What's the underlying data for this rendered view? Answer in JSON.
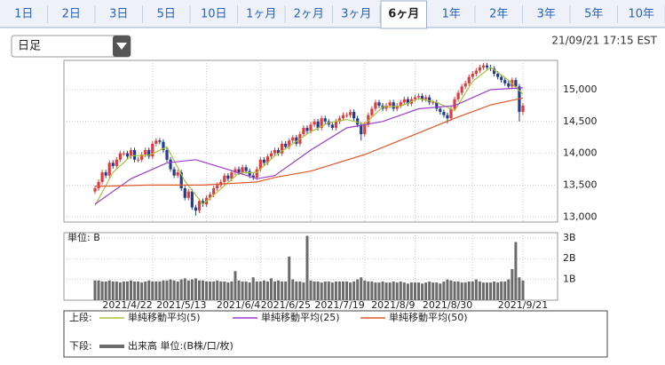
{
  "tabs": [
    {
      "label": "1日"
    },
    {
      "label": "2日"
    },
    {
      "label": "3日"
    },
    {
      "label": "5日"
    },
    {
      "label": "10日"
    },
    {
      "label": "1ヶ月"
    },
    {
      "label": "2ヶ月"
    },
    {
      "label": "3ヶ月"
    },
    {
      "label": "6ヶ月",
      "selected": true
    },
    {
      "label": "1年"
    },
    {
      "label": "2年"
    },
    {
      "label": "3年"
    },
    {
      "label": "5年"
    },
    {
      "label": "10年"
    }
  ],
  "dropdown": "日足",
  "timestamp": "21/09/21 17:15 EST",
  "legend": {
    "upper": "上段:",
    "lower": "下段:"
  },
  "chart_data": [
    {
      "type": "candlestick",
      "up_color": "#e03a3a",
      "down_color": "#1f3d8f",
      "grid": true,
      "ylim": [
        12920,
        15460
      ],
      "yticks": [
        {
          "value": 13000,
          "label": "13,000"
        },
        {
          "value": 13500,
          "label": "13,500"
        },
        {
          "value": 14000,
          "label": "14,000"
        },
        {
          "value": 14500,
          "label": "14,500"
        },
        {
          "value": 15000,
          "label": "15,000"
        }
      ],
      "open": [
        13400,
        13450,
        13550,
        13700,
        13650,
        13850,
        13800,
        13900,
        14000,
        14000,
        13950,
        14050,
        13900,
        13900,
        13980,
        14050,
        13950,
        14150,
        14200,
        14180,
        14050,
        13900,
        13750,
        13650,
        13700,
        13450,
        13300,
        13400,
        13150,
        13100,
        13250,
        13200,
        13300,
        13350,
        13450,
        13500,
        13550,
        13650,
        13600,
        13700,
        13750,
        13700,
        13780,
        13720,
        13650,
        13620,
        13750,
        13900,
        13850,
        13950,
        14000,
        14050,
        14000,
        14150,
        14100,
        14200,
        14250,
        14150,
        14300,
        14400,
        14350,
        14450,
        14500,
        14400,
        14550,
        14500,
        14450,
        14400,
        14500,
        14550,
        14600,
        14600,
        14650,
        14550,
        14450,
        14300,
        14450,
        14600,
        14700,
        14800,
        14750,
        14700,
        14750,
        14800,
        14700,
        14750,
        14800,
        14850,
        14780,
        14850,
        14880,
        14900,
        14850,
        14880,
        14800,
        14800,
        14700,
        14650,
        14600,
        14550,
        14700,
        14850,
        14950,
        15050,
        15100,
        15200,
        15250,
        15300,
        15350,
        15380,
        15350,
        15330,
        15250,
        15200,
        15150,
        15100,
        15050,
        15150,
        15050,
        14650
      ],
      "high": [
        13490,
        13590,
        13740,
        13740,
        13890,
        13890,
        13940,
        14040,
        14040,
        14040,
        14090,
        14090,
        13940,
        14020,
        14090,
        14090,
        14190,
        14240,
        14240,
        14220,
        14090,
        13940,
        13790,
        13740,
        13740,
        13490,
        13440,
        13440,
        13190,
        13290,
        13290,
        13340,
        13390,
        13490,
        13540,
        13590,
        13690,
        13690,
        13740,
        13790,
        13790,
        13820,
        13820,
        13760,
        13690,
        13790,
        13940,
        13940,
        13990,
        14040,
        14090,
        14090,
        14190,
        14190,
        14240,
        14290,
        14290,
        14340,
        14440,
        14440,
        14490,
        14540,
        14540,
        14590,
        14590,
        14540,
        14490,
        14540,
        14590,
        14640,
        14640,
        14690,
        14690,
        14590,
        14490,
        14490,
        14640,
        14740,
        14840,
        14840,
        14790,
        14790,
        14840,
        14840,
        14790,
        14840,
        14890,
        14890,
        14890,
        14920,
        14940,
        14940,
        14920,
        14920,
        14840,
        14840,
        14740,
        14690,
        14640,
        14740,
        14890,
        14990,
        15090,
        15140,
        15240,
        15290,
        15340,
        15390,
        15420,
        15420,
        15390,
        15370,
        15290,
        15240,
        15190,
        15140,
        15190,
        15190,
        15090,
        14790
      ],
      "low": [
        13360,
        13410,
        13510,
        13610,
        13610,
        13760,
        13760,
        13860,
        13960,
        13910,
        13910,
        13860,
        13860,
        13860,
        13940,
        13910,
        13910,
        14110,
        14140,
        14010,
        13860,
        13710,
        13610,
        13610,
        13410,
        13260,
        13260,
        13110,
        13020,
        13060,
        13160,
        13160,
        13260,
        13310,
        13410,
        13460,
        13510,
        13560,
        13560,
        13660,
        13660,
        13660,
        13680,
        13610,
        13580,
        13580,
        13710,
        13810,
        13810,
        13910,
        13960,
        13960,
        13960,
        14060,
        14060,
        14160,
        14110,
        14110,
        14260,
        14310,
        14310,
        14410,
        14360,
        14360,
        14460,
        14410,
        14360,
        14360,
        14460,
        14510,
        14560,
        14560,
        14510,
        14410,
        14200,
        14260,
        14410,
        14560,
        14660,
        14710,
        14660,
        14660,
        14710,
        14660,
        14660,
        14710,
        14760,
        14740,
        14740,
        14810,
        14840,
        14810,
        14810,
        14760,
        14760,
        14660,
        14610,
        14560,
        14470,
        14510,
        14660,
        14810,
        14910,
        15010,
        15060,
        15160,
        15210,
        15260,
        15310,
        15310,
        15290,
        15210,
        15160,
        15110,
        15060,
        15010,
        15010,
        15010,
        14500,
        14600
      ],
      "close": [
        13450,
        13550,
        13700,
        13650,
        13850,
        13800,
        13900,
        14000,
        14000,
        13950,
        14050,
        13900,
        13900,
        13980,
        14050,
        13950,
        14150,
        14200,
        14180,
        14050,
        13900,
        13750,
        13650,
        13700,
        13450,
        13300,
        13400,
        13150,
        13100,
        13250,
        13200,
        13300,
        13350,
        13450,
        13500,
        13550,
        13650,
        13600,
        13700,
        13750,
        13700,
        13780,
        13720,
        13650,
        13620,
        13750,
        13900,
        13850,
        13950,
        14000,
        14050,
        14000,
        14150,
        14100,
        14200,
        14250,
        14150,
        14300,
        14400,
        14350,
        14450,
        14500,
        14400,
        14550,
        14500,
        14450,
        14400,
        14500,
        14550,
        14600,
        14600,
        14650,
        14550,
        14450,
        14300,
        14450,
        14600,
        14700,
        14800,
        14750,
        14700,
        14750,
        14800,
        14700,
        14750,
        14800,
        14850,
        14780,
        14850,
        14880,
        14900,
        14850,
        14880,
        14800,
        14800,
        14700,
        14650,
        14600,
        14550,
        14700,
        14850,
        14950,
        15050,
        15100,
        15200,
        15250,
        15300,
        15350,
        15380,
        15350,
        15330,
        15250,
        15200,
        15150,
        15100,
        15050,
        15150,
        15050,
        14650,
        14750
      ],
      "lines": [
        {
          "name": "単純移動平均(5)",
          "color": "#a9c23a",
          "x": [
            0,
            5,
            10,
            15,
            20,
            25,
            30,
            35,
            40,
            45,
            50,
            55,
            60,
            65,
            70,
            75,
            80,
            85,
            90,
            95,
            100,
            105,
            110,
            115,
            119
          ],
          "values": [
            13180,
            13700,
            13960,
            13970,
            14100,
            13560,
            13200,
            13440,
            13690,
            13700,
            13960,
            14150,
            14340,
            14480,
            14530,
            14460,
            14730,
            14740,
            14860,
            14800,
            14670,
            15130,
            15350,
            15150,
            14930
          ]
        },
        {
          "name": "単純移動平均(25)",
          "color": "#9a3fc8",
          "x": [
            0,
            10,
            20,
            28,
            35,
            45,
            50,
            60,
            70,
            80,
            90,
            100,
            110,
            119
          ],
          "values": [
            13200,
            13600,
            13850,
            13900,
            13780,
            13600,
            13650,
            14050,
            14400,
            14500,
            14700,
            14750,
            15000,
            15030
          ]
        },
        {
          "name": "単純移動平均(50)",
          "color": "#e0582a",
          "x": [
            0,
            15,
            30,
            45,
            50,
            60,
            75,
            90,
            100,
            110,
            119
          ],
          "values": [
            13480,
            13500,
            13500,
            13550,
            13620,
            13720,
            13980,
            14320,
            14550,
            14760,
            14870
          ]
        }
      ]
    },
    {
      "type": "bar",
      "unit_label": "単位: B",
      "grid": true,
      "ylim": [
        0,
        3.25
      ],
      "yticks": [
        {
          "value": 1,
          "label": "1B"
        },
        {
          "value": 2,
          "label": "2B"
        },
        {
          "value": 3,
          "label": "3B"
        }
      ],
      "categories": [
        null,
        null,
        null,
        null,
        null,
        null,
        null,
        null,
        null,
        null,
        null,
        null,
        null,
        null,
        null,
        null,
        "2021/4/22",
        null,
        null,
        null,
        null,
        null,
        null,
        null,
        null,
        null,
        null,
        null,
        null,
        null,
        null,
        "2021/5/13",
        null,
        null,
        null,
        null,
        null,
        null,
        null,
        null,
        null,
        null,
        null,
        null,
        null,
        null,
        "2021/6/4",
        null,
        null,
        null,
        null,
        null,
        null,
        null,
        null,
        null,
        null,
        null,
        null,
        null,
        "2021/6/25",
        null,
        null,
        null,
        null,
        null,
        null,
        null,
        null,
        null,
        null,
        null,
        null,
        null,
        null,
        "2021/7/19",
        null,
        null,
        null,
        null,
        null,
        null,
        null,
        null,
        null,
        null,
        null,
        null,
        null,
        "2021/8/9",
        null,
        null,
        null,
        null,
        null,
        null,
        null,
        null,
        null,
        null,
        null,
        null,
        null,
        null,
        null,
        "2021/8/30",
        null,
        null,
        null,
        null,
        null,
        null,
        null,
        null,
        null,
        null,
        null,
        null,
        null,
        "2021/9/21"
      ],
      "series": [
        {
          "name": "出来高 単位:(B株/口/枚)",
          "color": "#6b6b6b",
          "values": [
            0.95,
            0.95,
            0.9,
            0.9,
            0.95,
            0.9,
            0.9,
            0.85,
            0.9,
            0.9,
            0.95,
            0.9,
            0.9,
            0.85,
            0.9,
            0.95,
            0.9,
            0.9,
            0.9,
            0.95,
            0.95,
            1.0,
            0.95,
            0.9,
            1.0,
            1.05,
            0.95,
            1.0,
            1.05,
            0.95,
            0.95,
            0.9,
            0.9,
            0.9,
            0.95,
            0.9,
            0.9,
            0.85,
            0.9,
            1.4,
            0.95,
            0.9,
            0.9,
            0.85,
            1.1,
            0.9,
            0.9,
            0.95,
            0.9,
            1.05,
            0.9,
            0.95,
            0.9,
            0.9,
            2.1,
            1.0,
            0.9,
            0.9,
            0.85,
            3.1,
            0.95,
            0.9,
            0.9,
            0.85,
            0.9,
            0.9,
            0.85,
            0.9,
            0.9,
            0.9,
            0.9,
            0.85,
            0.9,
            1.0,
            1.1,
            0.95,
            0.9,
            0.9,
            0.85,
            0.85,
            0.9,
            0.85,
            0.85,
            0.9,
            0.85,
            0.9,
            0.85,
            0.8,
            0.85,
            0.85,
            0.85,
            0.8,
            0.85,
            0.9,
            0.85,
            0.85,
            0.8,
            0.9,
            1.0,
            0.95,
            0.9,
            0.9,
            0.85,
            0.85,
            0.9,
            0.9,
            1.0,
            0.9,
            0.85,
            0.85,
            0.85,
            0.9,
            0.85,
            0.9,
            0.9,
            1.0,
            1.5,
            2.8,
            1.1,
            0.95
          ]
        }
      ]
    }
  ]
}
